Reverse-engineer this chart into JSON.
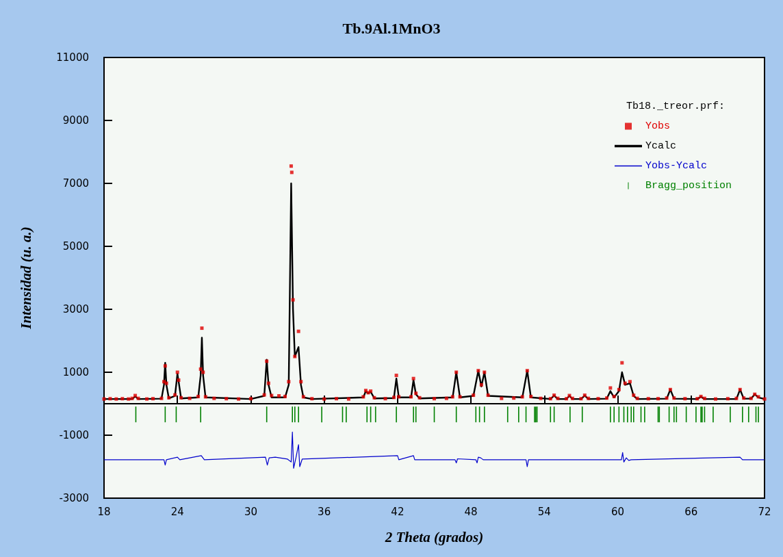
{
  "chart_data": {
    "type": "line",
    "title": "Tb.9Al.1MnO3",
    "xlabel": "2 Theta (grados)",
    "ylabel": "Intensidad (u. a.)",
    "legend_title": "Tb18._treor.prf:",
    "xlim": [
      18,
      72
    ],
    "xticks": [
      18,
      24,
      30,
      36,
      42,
      48,
      54,
      60,
      66,
      72
    ],
    "ylim": [
      -3000,
      11000
    ],
    "yticks": [
      -3000,
      -1000,
      1000,
      3000,
      5000,
      7000,
      9000,
      11000
    ],
    "grid": false,
    "legend": "top right",
    "series": [
      {
        "name": "Yobs",
        "type": "scatter",
        "marker": "square",
        "color": "#e00000",
        "x": [
          18,
          18.5,
          19,
          19.5,
          20,
          20.3,
          20.55,
          20.8,
          21.5,
          22,
          22.7,
          22.9,
          23.0,
          23.1,
          23.3,
          23.8,
          24.0,
          24.1,
          24.3,
          25,
          25.7,
          25.9,
          26.0,
          26.1,
          26.3,
          27,
          28,
          29,
          30.0,
          31.1,
          31.3,
          31.45,
          31.7,
          32.3,
          32.8,
          33.1,
          33.3,
          33.35,
          33.45,
          33.6,
          33.9,
          34.1,
          34.3,
          35.0,
          36,
          37,
          38,
          39.2,
          39.4,
          39.6,
          39.8,
          40.1,
          41,
          41.7,
          41.9,
          42.1,
          43.1,
          43.3,
          43.5,
          43.8,
          45,
          46,
          46.5,
          46.8,
          47.1,
          48.2,
          48.6,
          48.85,
          49.1,
          49.4,
          50.5,
          51.5,
          52.2,
          52.6,
          52.9,
          53.7,
          54.5,
          54.8,
          55.1,
          55.8,
          56.05,
          56.3,
          57.0,
          57.3,
          57.6,
          58.4,
          59.1,
          59.4,
          59.7,
          60.1,
          60.35,
          60.6,
          61.0,
          61.3,
          61.6,
          62.5,
          63.3,
          64.0,
          64.3,
          64.6,
          65.5,
          66.5,
          66.8,
          67.1,
          68,
          69,
          69.7,
          70.0,
          70.3,
          70.9,
          71.2,
          71.5,
          72
        ],
        "values": [
          150,
          160,
          150,
          160,
          150,
          170,
          260,
          170,
          150,
          160,
          170,
          700,
          1200,
          650,
          190,
          280,
          1000,
          750,
          190,
          170,
          230,
          1100,
          2400,
          1000,
          220,
          170,
          160,
          150,
          160,
          280,
          1350,
          650,
          260,
          250,
          230,
          700,
          7550,
          7350,
          3300,
          1500,
          2300,
          700,
          220,
          160,
          150,
          160,
          150,
          220,
          420,
          350,
          400,
          190,
          160,
          200,
          900,
          220,
          220,
          800,
          330,
          190,
          160,
          170,
          220,
          1000,
          220,
          270,
          1050,
          600,
          1000,
          270,
          170,
          180,
          220,
          1050,
          230,
          170,
          160,
          270,
          170,
          160,
          260,
          170,
          160,
          270,
          170,
          160,
          180,
          500,
          230,
          450,
          1300,
          650,
          700,
          270,
          170,
          160,
          160,
          180,
          450,
          180,
          160,
          160,
          230,
          170,
          150,
          160,
          170,
          450,
          180,
          170,
          300,
          220,
          150
        ]
      },
      {
        "name": "Ycalc",
        "marker": "none",
        "color": "#000000",
        "x": [
          18,
          20.3,
          20.55,
          20.8,
          22.7,
          22.9,
          23.0,
          23.1,
          23.3,
          23.8,
          24.0,
          24.1,
          24.3,
          25.7,
          25.9,
          26.0,
          26.1,
          26.3,
          30.0,
          31.1,
          31.3,
          31.45,
          31.7,
          32.8,
          33.1,
          33.3,
          33.45,
          33.6,
          33.9,
          34.1,
          34.3,
          35.0,
          39.2,
          39.4,
          39.6,
          39.8,
          40.1,
          41.7,
          41.9,
          42.1,
          43.1,
          43.3,
          43.5,
          43.8,
          46.5,
          46.8,
          47.1,
          48.2,
          48.6,
          48.85,
          49.1,
          49.4,
          52.2,
          52.6,
          52.9,
          54.5,
          54.8,
          55.1,
          55.8,
          56.05,
          56.3,
          57.0,
          57.3,
          57.6,
          59.1,
          59.4,
          59.7,
          60.1,
          60.35,
          60.6,
          61.0,
          61.3,
          61.6,
          64.0,
          64.3,
          64.6,
          66.5,
          66.8,
          67.1,
          69.7,
          70.0,
          70.3,
          70.9,
          71.2,
          71.5,
          72
        ],
        "values": [
          150,
          150,
          230,
          150,
          160,
          600,
          1300,
          600,
          170,
          250,
          950,
          700,
          170,
          200,
          900,
          2100,
          900,
          200,
          150,
          250,
          1400,
          600,
          200,
          200,
          600,
          7000,
          3000,
          1500,
          1800,
          600,
          200,
          150,
          200,
          400,
          330,
          380,
          170,
          180,
          800,
          200,
          200,
          750,
          300,
          170,
          200,
          1000,
          200,
          250,
          1050,
          550,
          1000,
          250,
          200,
          1050,
          200,
          150,
          260,
          150,
          150,
          250,
          150,
          150,
          260,
          150,
          160,
          400,
          200,
          400,
          1000,
          600,
          650,
          250,
          150,
          160,
          450,
          160,
          150,
          220,
          150,
          150,
          450,
          160,
          160,
          300,
          200,
          150
        ]
      },
      {
        "name": "Yobs-Ycalc",
        "marker": "none",
        "color": "#0000cc",
        "x": [
          18,
          22.9,
          23.0,
          23.1,
          24.0,
          24.2,
          25.95,
          26.2,
          31.2,
          31.35,
          31.5,
          32.0,
          33.0,
          33.3,
          33.4,
          33.5,
          33.7,
          33.9,
          34.0,
          34.2,
          42.0,
          42.1,
          43.3,
          43.4,
          46.7,
          46.8,
          46.9,
          48.4,
          48.5,
          48.6,
          48.8,
          49.0,
          52.5,
          52.6,
          52.7,
          60.3,
          60.4,
          60.5,
          60.7,
          60.9,
          61.1,
          70.0,
          70.2,
          72
        ],
        "values": [
          -1780,
          -1780,
          -1950,
          -1780,
          -1700,
          -1780,
          -1650,
          -1780,
          -1700,
          -1950,
          -1720,
          -1700,
          -1760,
          -1850,
          -900,
          -2050,
          -1700,
          -1300,
          -2000,
          -1760,
          -1650,
          -1780,
          -1650,
          -1780,
          -1780,
          -1880,
          -1750,
          -1780,
          -1880,
          -1700,
          -1720,
          -1780,
          -1780,
          -2000,
          -1780,
          -1780,
          -1550,
          -1850,
          -1720,
          -1800,
          -1780,
          -1700,
          -1780,
          -1780
        ]
      },
      {
        "name": "Bragg_position",
        "type": "bar",
        "color": "#008000",
        "base": [
          -590,
          -590,
          -590,
          -590,
          -590,
          -590,
          -590,
          -590,
          -590,
          -590,
          -590,
          -590,
          -590,
          -590,
          -590,
          -590,
          -590,
          -590,
          -590,
          -590,
          -590,
          -590,
          -590,
          -590,
          -590,
          -590,
          -590,
          -590,
          -590,
          -590,
          -590,
          -590,
          -590,
          -590,
          -590,
          -590,
          -590,
          -590,
          -590,
          -590,
          -590,
          -590,
          -590,
          -590,
          -590,
          -590,
          -590,
          -590,
          -590,
          -590,
          -590,
          -590,
          -590,
          -590,
          -590,
          -590,
          -590
        ],
        "x": [
          20.6,
          23.0,
          23.9,
          25.9,
          31.3,
          33.4,
          33.6,
          33.9,
          35.8,
          37.5,
          37.8,
          39.5,
          39.8,
          40.2,
          41.9,
          43.3,
          43.5,
          45.0,
          46.8,
          48.4,
          48.7,
          49.1,
          51.0,
          51.9,
          52.5,
          53.2,
          53.3,
          53.4,
          54.5,
          54.8,
          56.1,
          57.1,
          59.4,
          59.7,
          60.1,
          60.5,
          60.8,
          61.1,
          61.3,
          61.9,
          62.2,
          63.3,
          63.4,
          64.2,
          64.6,
          64.8,
          65.6,
          66.4,
          66.8,
          66.9,
          67.1,
          67.8,
          69.2,
          70.2,
          70.7,
          71.3,
          71.5
        ],
        "values": [
          500,
          500,
          500,
          500,
          500,
          500,
          500,
          500,
          500,
          500,
          500,
          500,
          500,
          500,
          500,
          500,
          500,
          500,
          500,
          500,
          500,
          500,
          500,
          500,
          500,
          500,
          500,
          500,
          500,
          500,
          500,
          500,
          500,
          500,
          500,
          500,
          500,
          500,
          500,
          500,
          500,
          500,
          500,
          500,
          500,
          500,
          500,
          500,
          500,
          500,
          500,
          500,
          500,
          500,
          500,
          500,
          500
        ]
      }
    ]
  }
}
